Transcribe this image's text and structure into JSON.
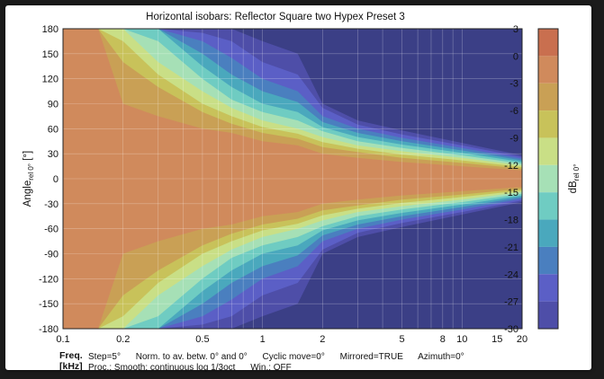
{
  "chart_data": {
    "type": "heatmap",
    "title": "Horizontal isobars: Reflector  Square two  Hypex Preset 3",
    "xlabel_top": "Freq.",
    "xlabel_bottom": "[kHz]",
    "ylabel_main": "Angle",
    "ylabel_sub": "rel 0°",
    "ylabel_unit": " [°]",
    "colorbar_label_main": "dB",
    "colorbar_label_sub": "rel 0°",
    "x_scale": "log",
    "xlim": [
      0.1,
      20
    ],
    "ylim": [
      -180,
      180
    ],
    "x_ticks": [
      {
        "value": 0.1,
        "label": "0.1"
      },
      {
        "value": 0.2,
        "label": "0.2"
      },
      {
        "value": 0.5,
        "label": "0.5"
      },
      {
        "value": 1,
        "label": "1"
      },
      {
        "value": 2,
        "label": "2"
      },
      {
        "value": 5,
        "label": "5"
      },
      {
        "value": 8,
        "label": "8"
      },
      {
        "value": 10,
        "label": "10"
      },
      {
        "value": 15,
        "label": "15"
      },
      {
        "value": 20,
        "label": "20"
      }
    ],
    "x_gridlines": [
      0.1,
      0.2,
      0.3,
      0.4,
      0.5,
      0.6,
      0.7,
      0.8,
      0.9,
      1,
      2,
      3,
      4,
      5,
      6,
      7,
      8,
      9,
      10,
      20
    ],
    "y_ticks": [
      180,
      150,
      120,
      90,
      60,
      30,
      0,
      -30,
      -60,
      -90,
      -120,
      -150,
      -180
    ],
    "grid": true,
    "colorbar": {
      "range": [
        -30,
        3
      ],
      "step": 3,
      "tick_labels": [
        "3",
        "0",
        "-3",
        "-6",
        "-9",
        "-12",
        "-15",
        "-18",
        "-21",
        "-24",
        "-27",
        "-30"
      ],
      "levels": [
        {
          "from": 0,
          "to": 3,
          "color": "#c96f4f"
        },
        {
          "from": -3,
          "to": 0,
          "color": "#d08a5c"
        },
        {
          "from": -6,
          "to": -3,
          "color": "#c9a055"
        },
        {
          "from": -9,
          "to": -6,
          "color": "#c8c25a"
        },
        {
          "from": -12,
          "to": -9,
          "color": "#c9df86"
        },
        {
          "from": -15,
          "to": -12,
          "color": "#a6e0b6"
        },
        {
          "from": -18,
          "to": -15,
          "color": "#6fccc2"
        },
        {
          "from": -21,
          "to": -18,
          "color": "#4aa8bd"
        },
        {
          "from": -24,
          "to": -21,
          "color": "#4a7fbf"
        },
        {
          "from": -27,
          "to": -24,
          "color": "#5b5fc6"
        },
        {
          "from": -30,
          "to": -27,
          "color": "#4e4ea8"
        },
        {
          "from": -33,
          "to": -30,
          "color": "#3b3f86"
        }
      ]
    },
    "isobar_half_width_deg": {
      "frequencies_khz": [
        0.1,
        0.15,
        0.2,
        0.3,
        0.5,
        0.7,
        1,
        1.5,
        2,
        3,
        5,
        10,
        20
      ],
      "contour_levels_db": [
        -3,
        -6,
        -9,
        -12,
        -15,
        -18,
        -21,
        -24,
        -27,
        -30
      ],
      "half_widths": [
        [
          180,
          180,
          180,
          180,
          180,
          180,
          180,
          180,
          180,
          180
        ],
        [
          180,
          180,
          180,
          180,
          180,
          180,
          180,
          180,
          180,
          180
        ],
        [
          90,
          140,
          165,
          180,
          180,
          180,
          180,
          180,
          180,
          180
        ],
        [
          75,
          110,
          125,
          140,
          165,
          180,
          180,
          180,
          180,
          180
        ],
        [
          60,
          80,
          90,
          105,
          120,
          135,
          150,
          165,
          175,
          180
        ],
        [
          55,
          66,
          75,
          85,
          95,
          110,
          125,
          145,
          165,
          180
        ],
        [
          45,
          55,
          62,
          70,
          80,
          90,
          105,
          120,
          140,
          165
        ],
        [
          40,
          48,
          54,
          60,
          70,
          80,
          92,
          105,
          125,
          150
        ],
        [
          30,
          38,
          44,
          50,
          57,
          62,
          68,
          75,
          85,
          90
        ],
        [
          25,
          32,
          36,
          40,
          45,
          50,
          55,
          60,
          65,
          70
        ],
        [
          20,
          25,
          29,
          33,
          37,
          41,
          45,
          49,
          53,
          58
        ],
        [
          15,
          19,
          22,
          25,
          28,
          31,
          34,
          37,
          40,
          43
        ],
        [
          10,
          12,
          14,
          16,
          18,
          20,
          22,
          24,
          26,
          28
        ]
      ]
    }
  },
  "footer": {
    "step": "Step=5°",
    "norm": "Norm. to av. betw. 0° and 0°",
    "cyclic": "Cyclic move=0°",
    "mirrored": "Mirrored=TRUE",
    "azimuth": "Azimuth=0°",
    "proc": "Proc.: Smooth: continuous log 1/3oct",
    "win": "Win.: OFF"
  }
}
